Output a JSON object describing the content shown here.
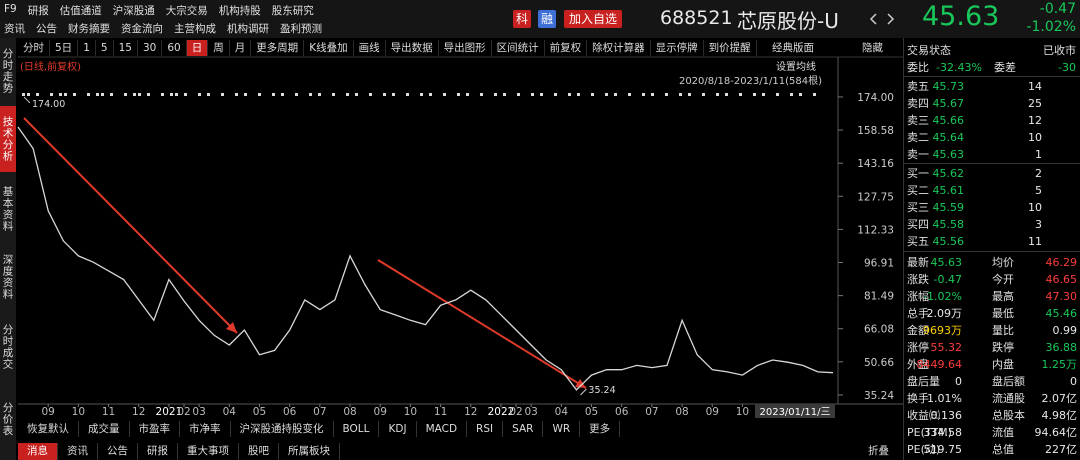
{
  "header": {
    "menu_row1": [
      "F9",
      "研报",
      "估值通道",
      "沪深股通",
      "大宗交易",
      "机构持股",
      "股东研究"
    ],
    "menu_row2": [
      "资讯",
      "公告",
      "财务摘要",
      "资金流向",
      "主营构成",
      "机构调研",
      "盈利预测"
    ],
    "badges": [
      "科",
      "融"
    ],
    "add_watch": "加入自选",
    "code": "688521",
    "name": "芯原股份-U",
    "price": "45.63",
    "change": "-0.47",
    "change_pct": "-1.02%"
  },
  "sidebar": [
    "分时走势",
    "技术分析",
    "基本资料",
    "深度资料",
    "分时成交",
    "分价表"
  ],
  "sidebar_active": 1,
  "toolbar": [
    "分时",
    "5日",
    "1",
    "5",
    "15",
    "30",
    "60",
    "日",
    "周",
    "月",
    "更多周期",
    "K线叠加",
    "画线",
    "导出数据",
    "导出图形",
    "区间统计",
    "前复权",
    "除权计算器",
    "显示停牌",
    "到价提醒"
  ],
  "toolbar_active": 7,
  "toolbar_right": [
    "经典版面",
    "隐藏"
  ],
  "chart_data": {
    "type": "line",
    "subtitle": "(日线,前复权)",
    "range_label": "2020/8/18-2023/1/11(584根)",
    "ma_setting": "设置均线",
    "cursor_date": "2023/01/11/三",
    "color": "#d8d8d8",
    "categories": [
      null,
      null,
      "09",
      null,
      "10",
      null,
      "11",
      null,
      "12",
      null,
      "2021",
      "02",
      "03",
      null,
      "04",
      null,
      "05",
      null,
      "06",
      null,
      "07",
      null,
      "08",
      null,
      "09",
      null,
      "10",
      null,
      "11",
      null,
      "12",
      null,
      "2022",
      "02",
      "03",
      null,
      "04",
      null,
      "05",
      null,
      "06",
      null,
      "07",
      null,
      "08",
      null,
      "09",
      null,
      "10",
      null,
      null,
      null,
      null,
      null,
      null
    ],
    "values": [
      160,
      150,
      121,
      107,
      100,
      97,
      93,
      89,
      79.5,
      70,
      89,
      79,
      70,
      63,
      58.5,
      65.5,
      54,
      56,
      65.5,
      79.5,
      75,
      79.5,
      100,
      86.5,
      75,
      72.5,
      70,
      68,
      77,
      79.5,
      84,
      79.5,
      72.5,
      65.5,
      58.5,
      51.5,
      47,
      37.6,
      44.5,
      47,
      47,
      49,
      48,
      49,
      70,
      54,
      47,
      46,
      44.5,
      49,
      51.5,
      50.5,
      49,
      46,
      45.63
    ],
    "ylim": [
      31.5,
      191.2
    ],
    "yticks": [
      {
        "value": 174,
        "label": "174.00"
      },
      {
        "value": 158.58,
        "label": "158.58"
      },
      {
        "value": 143.16,
        "label": "143.16"
      },
      {
        "value": 127.75,
        "label": "127.75"
      },
      {
        "value": 112.33,
        "label": "112.33"
      },
      {
        "value": 96.91,
        "label": "96.91"
      },
      {
        "value": 81.49,
        "label": "81.49"
      },
      {
        "value": 66.08,
        "label": "66.08"
      },
      {
        "value": 50.66,
        "label": "50.66"
      },
      {
        "value": 35.24,
        "label": "35.24"
      }
    ],
    "high_label": {
      "value": 174,
      "label": "174.00"
    },
    "low_label": {
      "value": 35.24,
      "label": "35.24"
    }
  },
  "order_book": {
    "status_label": "交易状态",
    "status": "已收市",
    "ratio_label": "委比",
    "ratio": "-32.43%",
    "diff_label": "委差",
    "diff": "-30",
    "asks": [
      [
        "卖五",
        "45.73",
        "14"
      ],
      [
        "卖四",
        "45.67",
        "25"
      ],
      [
        "卖三",
        "45.66",
        "12"
      ],
      [
        "卖二",
        "45.64",
        "10"
      ],
      [
        "卖一",
        "45.63",
        "1"
      ]
    ],
    "bids": [
      [
        "买一",
        "45.62",
        "2"
      ],
      [
        "买二",
        "45.61",
        "5"
      ],
      [
        "买三",
        "45.59",
        "10"
      ],
      [
        "买四",
        "45.58",
        "3"
      ],
      [
        "买五",
        "45.56",
        "11"
      ]
    ],
    "price_color": "#19c85a"
  },
  "stats": [
    [
      "最新",
      "45.63",
      "均价",
      "46.29"
    ],
    [
      "涨跌",
      "-0.47",
      "今开",
      "46.65"
    ],
    [
      "涨幅",
      "-1.02%",
      "最高",
      "47.30"
    ],
    [
      "总手",
      "2.09万",
      "最低",
      "45.46"
    ],
    [
      "金额",
      "9693万",
      "量比",
      "0.99"
    ],
    [
      "涨停",
      "55.32",
      "跌停",
      "36.88"
    ],
    [
      "外盘",
      "8449.64",
      "内盘",
      "1.25万"
    ],
    [
      "盘后量",
      "0",
      "盘后额",
      "0"
    ],
    [
      "换手",
      "1.01%",
      "流通股",
      "2.07亿"
    ],
    [
      "收益㈢",
      "0.136",
      "总股本",
      "4.98亿"
    ],
    [
      "PE(TTM)",
      "334.58",
      "流值",
      "94.64亿"
    ],
    [
      "PE(动)",
      "519.75",
      "总值",
      "227亿"
    ]
  ],
  "stat_colors": [
    [
      "#19c85a",
      "#ff3c3c"
    ],
    [
      "#19c85a",
      "#ff3c3c"
    ],
    [
      "#19c85a",
      "#ff3c3c"
    ],
    [
      "#e8e8e8",
      "#19c85a"
    ],
    [
      "#ffd000",
      "#e8e8e8"
    ],
    [
      "#ff3c3c",
      "#19c85a"
    ],
    [
      "#ff3c3c",
      "#19c85a"
    ],
    [
      "#e8e8e8",
      "#e8e8e8"
    ],
    [
      "#e8e8e8",
      "#e8e8e8"
    ],
    [
      "#e8e8e8",
      "#e8e8e8"
    ],
    [
      "#e8e8e8",
      "#e8e8e8"
    ],
    [
      "#e8e8e8",
      "#e8e8e8"
    ]
  ],
  "indicator_tabs": [
    "恢复默认",
    "成交量",
    "市盈率",
    "市净率",
    "沪深股通持股变化",
    "BOLL",
    "KDJ",
    "MACD",
    "RSI",
    "SAR",
    "WR",
    "更多"
  ],
  "bottom_tabs": [
    "消息",
    "资讯",
    "公告",
    "研报",
    "重大事项",
    "股吧",
    "所属板块"
  ],
  "bottom_active": 0,
  "collapse": "折叠"
}
